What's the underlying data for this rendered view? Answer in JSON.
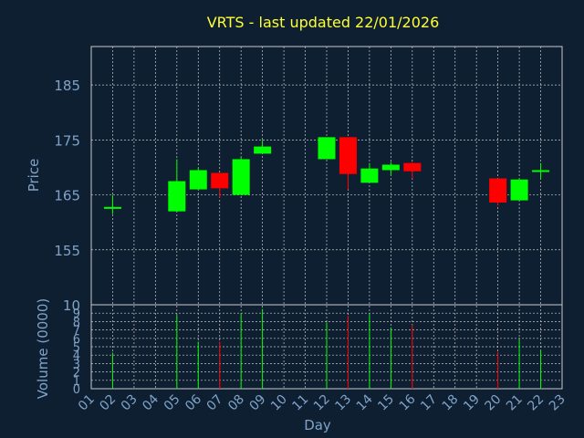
{
  "chart_data": {
    "type": "candlestick",
    "title": "VRTS - last updated 22/01/2026",
    "xlabel": "Day",
    "ylabel_price": "Price",
    "ylabel_volume": "Volume (0000)",
    "x_ticks": [
      "01",
      "02",
      "03",
      "04",
      "05",
      "06",
      "07",
      "08",
      "09",
      "10",
      "11",
      "12",
      "13",
      "14",
      "15",
      "16",
      "17",
      "18",
      "19",
      "20",
      "21",
      "22",
      "23"
    ],
    "price_ticks": [
      155,
      165,
      175,
      185
    ],
    "price_ylim": [
      145,
      192
    ],
    "volume_ticks": [
      0,
      1,
      2,
      3,
      4,
      5,
      6,
      7,
      8,
      9,
      10
    ],
    "volume_ylim": [
      0,
      10
    ],
    "grid": true,
    "colors": {
      "up": "#00ff00",
      "down": "#ff0000",
      "title": "#ffff33",
      "axis_text": "#7fa3c8",
      "background": "#0f1f32"
    },
    "candles": [
      {
        "day": "02",
        "open": 162.8,
        "close": 162.8,
        "high": 165.0,
        "low": 161.5,
        "volume": 4.3
      },
      {
        "day": "05",
        "open": 162.0,
        "close": 167.5,
        "high": 171.5,
        "low": 162.0,
        "volume": 8.8
      },
      {
        "day": "06",
        "open": 166.0,
        "close": 169.5,
        "high": 170.0,
        "low": 166.0,
        "volume": 5.6
      },
      {
        "day": "07",
        "open": 169.0,
        "close": 166.2,
        "high": 169.0,
        "low": 164.5,
        "volume": 5.6
      },
      {
        "day": "08",
        "open": 165.0,
        "close": 171.5,
        "high": 172.0,
        "low": 165.0,
        "volume": 9.0
      },
      {
        "day": "09",
        "open": 172.5,
        "close": 173.8,
        "high": 175.0,
        "low": 172.5,
        "volume": 9.5
      },
      {
        "day": "12",
        "open": 171.5,
        "close": 175.5,
        "high": 175.5,
        "low": 171.5,
        "volume": 7.9
      },
      {
        "day": "13",
        "open": 175.5,
        "close": 168.8,
        "high": 175.5,
        "low": 166.0,
        "volume": 8.7
      },
      {
        "day": "14",
        "open": 167.2,
        "close": 169.8,
        "high": 170.8,
        "low": 167.2,
        "volume": 8.9
      },
      {
        "day": "15",
        "open": 169.5,
        "close": 170.5,
        "high": 171.0,
        "low": 168.5,
        "volume": 7.3
      },
      {
        "day": "16",
        "open": 170.8,
        "close": 169.3,
        "high": 171.0,
        "low": 168.0,
        "volume": 7.6
      },
      {
        "day": "20",
        "open": 168.0,
        "close": 163.6,
        "high": 168.0,
        "low": 163.0,
        "volume": 4.4
      },
      {
        "day": "21",
        "open": 164.0,
        "close": 167.8,
        "high": 168.0,
        "low": 164.0,
        "volume": 5.9
      },
      {
        "day": "22",
        "open": 169.5,
        "close": 169.5,
        "high": 170.8,
        "low": 167.8,
        "volume": 4.6
      }
    ]
  }
}
